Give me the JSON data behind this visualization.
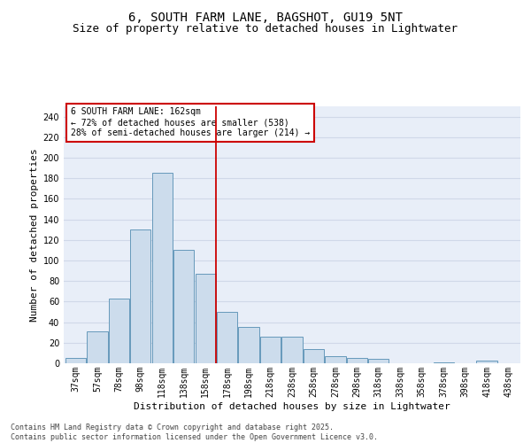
{
  "title1": "6, SOUTH FARM LANE, BAGSHOT, GU19 5NT",
  "title2": "Size of property relative to detached houses in Lightwater",
  "xlabel": "Distribution of detached houses by size in Lightwater",
  "ylabel": "Number of detached properties",
  "categories": [
    "37sqm",
    "57sqm",
    "78sqm",
    "98sqm",
    "118sqm",
    "138sqm",
    "158sqm",
    "178sqm",
    "198sqm",
    "218sqm",
    "238sqm",
    "258sqm",
    "278sqm",
    "298sqm",
    "318sqm",
    "338sqm",
    "358sqm",
    "378sqm",
    "398sqm",
    "418sqm",
    "438sqm"
  ],
  "values": [
    5,
    31,
    63,
    130,
    185,
    110,
    87,
    50,
    35,
    26,
    26,
    14,
    7,
    5,
    4,
    0,
    0,
    1,
    0,
    3,
    0
  ],
  "bar_color": "#ccdcec",
  "bar_edge_color": "#6699bb",
  "vline_color": "#cc0000",
  "annotation_text": "6 SOUTH FARM LANE: 162sqm\n← 72% of detached houses are smaller (538)\n28% of semi-detached houses are larger (214) →",
  "annotation_box_color": "#ffffff",
  "annotation_box_edge": "#cc0000",
  "ylim": [
    0,
    250
  ],
  "yticks": [
    0,
    20,
    40,
    60,
    80,
    100,
    120,
    140,
    160,
    180,
    200,
    220,
    240
  ],
  "grid_color": "#d0d8e8",
  "bg_color": "#e8eef8",
  "footer": "Contains HM Land Registry data © Crown copyright and database right 2025.\nContains public sector information licensed under the Open Government Licence v3.0.",
  "title_fontsize": 10,
  "subtitle_fontsize": 9,
  "axis_label_fontsize": 8,
  "tick_fontsize": 7,
  "annotation_fontsize": 7,
  "footer_fontsize": 6
}
